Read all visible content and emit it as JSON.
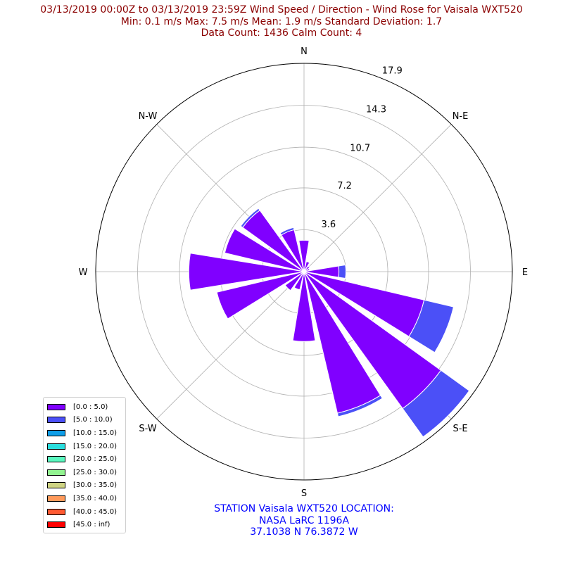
{
  "title": {
    "line1": "03/13/2019 00:00Z to 03/13/2019 23:59Z Wind Speed / Direction - Wind Rose for Vaisala WXT520",
    "line2": "Min: 0.1 m/s   Max: 7.5 m/s   Mean: 1.9 m/s  Standard Deviation: 1.7",
    "line3": "Data Count: 1436  Calm Count:  4"
  },
  "station": {
    "line1": "STATION Vaisala WXT520 LOCATION:",
    "line2": "NASA LaRC 1196A",
    "line3": "37.1038 N 76.3872 W"
  },
  "chart_data": {
    "type": "polar-bar",
    "directions": [
      "N",
      "NNE",
      "NE",
      "ENE",
      "E",
      "ESE",
      "SE",
      "SSE",
      "S",
      "SSW",
      "SW",
      "WSW",
      "W",
      "WNW",
      "NW",
      "NNW"
    ],
    "compass_labels": [
      "N",
      "N-E",
      "E",
      "S-E",
      "S",
      "S-W",
      "W",
      "N-W"
    ],
    "radial_ticks": [
      "3.6",
      "7.2",
      "10.7",
      "14.3",
      "17.9"
    ],
    "rmax": 17.9,
    "series": [
      {
        "name": "[0.0 : 5.0)",
        "color": "#8000ff",
        "values": [
          2.7,
          0.9,
          0.6,
          0.5,
          3.0,
          10.6,
          14.5,
          12.5,
          6.0,
          1.6,
          2.0,
          7.7,
          9.9,
          7.0,
          6.5,
          3.7
        ]
      },
      {
        "name": "[5.0 : 10.0)",
        "color": "#4b50f7",
        "values": [
          0,
          0,
          0,
          0,
          0.6,
          2.6,
          3.0,
          0.3,
          0,
          0,
          0,
          0,
          0,
          0,
          0.2,
          0.2
        ]
      },
      {
        "name": "[10.0 : 15.0)",
        "color": "#0f9ee8",
        "values": []
      },
      {
        "name": "[15.0 : 20.0)",
        "color": "#2adddd",
        "values": []
      },
      {
        "name": "[20.0 : 25.0)",
        "color": "#5bf8c0",
        "values": []
      },
      {
        "name": "[25.0 : 30.0)",
        "color": "#92f390",
        "values": []
      },
      {
        "name": "[30.0 : 35.0)",
        "color": "#cfd483",
        "values": []
      },
      {
        "name": "[35.0 : 40.0)",
        "color": "#ff9a5b",
        "values": []
      },
      {
        "name": "[40.0 : 45.0)",
        "color": "#ff5a32",
        "values": []
      },
      {
        "name": "[45.0 : inf)",
        "color": "#ff0000",
        "values": []
      }
    ]
  }
}
